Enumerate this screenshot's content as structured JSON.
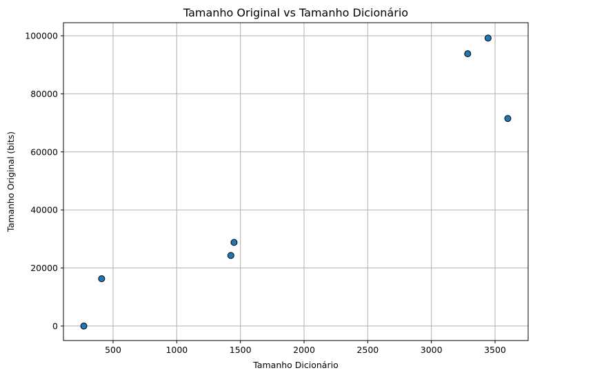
{
  "chart_data": {
    "type": "scatter",
    "title": "Tamanho Original vs Tamanho Dicionário",
    "xlabel": "Tamanho Dicionário",
    "ylabel": "Tamanho Original (bits)",
    "xlim": [
      110,
      3760
    ],
    "ylim": [
      -5000,
      104500
    ],
    "xticks": [
      500,
      1000,
      1500,
      2000,
      2500,
      3000,
      3500
    ],
    "yticks": [
      0,
      20000,
      40000,
      60000,
      80000,
      100000
    ],
    "grid": true,
    "marker_color": "#1f77b4",
    "marker_edge_color": "#000000",
    "points": [
      {
        "x": 270,
        "y": 0
      },
      {
        "x": 410,
        "y": 16300
      },
      {
        "x": 1425,
        "y": 24300
      },
      {
        "x": 1450,
        "y": 28800
      },
      {
        "x": 3285,
        "y": 93800
      },
      {
        "x": 3445,
        "y": 99200
      },
      {
        "x": 3600,
        "y": 71500
      }
    ]
  }
}
